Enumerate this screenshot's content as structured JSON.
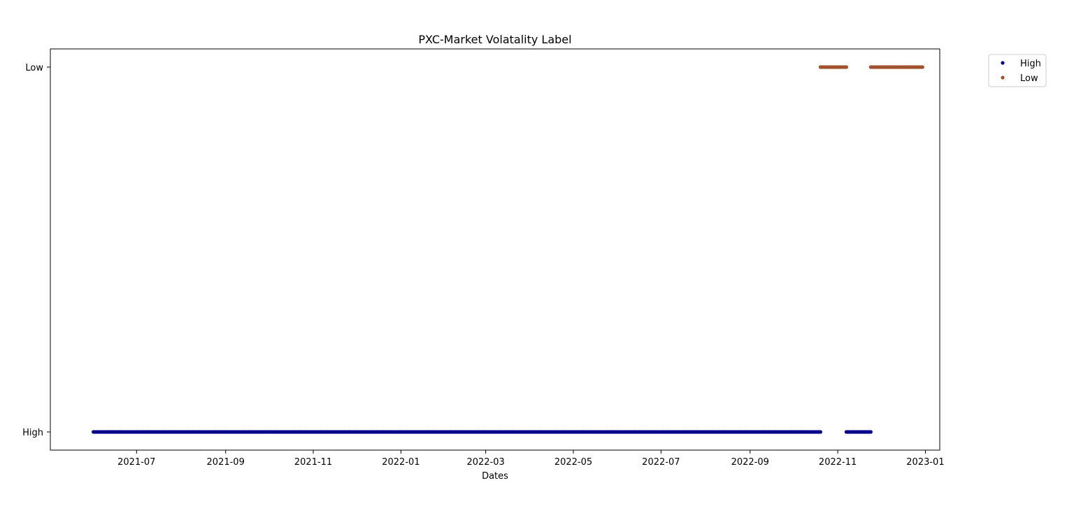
{
  "chart_data": {
    "type": "scatter",
    "title": "PXC-Market Volatality Label",
    "xlabel": "Dates",
    "ylabel": "",
    "y_categories": [
      "High",
      "Low"
    ],
    "x_ticks": [
      "2021-07",
      "2021-09",
      "2021-11",
      "2022-01",
      "2022-03",
      "2022-05",
      "2022-07",
      "2022-09",
      "2022-11",
      "2023-01"
    ],
    "xlim": [
      "2021-05-02",
      "2023-01-11"
    ],
    "grid": false,
    "legend_position": "outside-top-right",
    "series": [
      {
        "name": "High",
        "color": "#00008b",
        "y": "High",
        "ranges": [
          [
            "2021-06-01",
            "2022-10-20"
          ],
          [
            "2022-11-07",
            "2022-11-24"
          ]
        ]
      },
      {
        "name": "Low",
        "color": "#a0522d",
        "y": "Low",
        "ranges": [
          [
            "2022-10-20",
            "2022-11-07"
          ],
          [
            "2022-11-24",
            "2022-12-30"
          ]
        ]
      }
    ]
  }
}
